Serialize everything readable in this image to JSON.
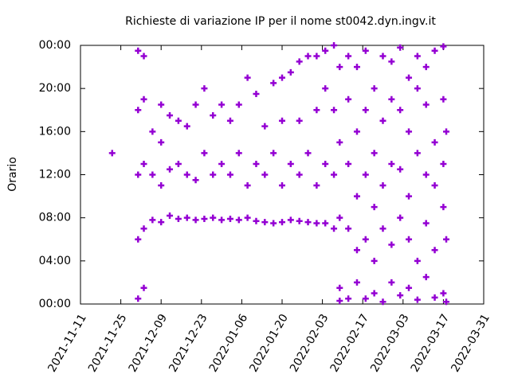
{
  "chart_data": {
    "type": "scatter",
    "title": "Richieste di variazione IP per il nome st0042.dyn.ingv.it",
    "y_label": "Orario",
    "xlim": [
      "2021-11-11",
      "2022-03-31"
    ],
    "xticks": [
      "2021-11-11",
      "2021-11-25",
      "2021-12-09",
      "2021-12-23",
      "2022-01-06",
      "2022-01-20",
      "2022-02-03",
      "2022-02-17",
      "2022-03-03",
      "2022-03-17",
      "2022-03-31"
    ],
    "ylim": [
      0,
      24
    ],
    "yticks": [
      {
        "value": 0,
        "label": "00:00"
      },
      {
        "value": 4,
        "label": "04:00"
      },
      {
        "value": 8,
        "label": "08:00"
      },
      {
        "value": 12,
        "label": "12:00"
      },
      {
        "value": 16,
        "label": "16:00"
      },
      {
        "value": 20,
        "label": "20:00"
      },
      {
        "value": 24,
        "label": "00:00"
      }
    ],
    "series": [
      {
        "color": "#9400d3",
        "x": [
          "2021-11-22",
          "2021-12-01",
          "2021-12-01",
          "2021-12-01",
          "2021-12-01",
          "2021-12-01",
          "2021-12-03",
          "2021-12-03",
          "2021-12-03",
          "2021-12-03",
          "2021-12-03",
          "2021-12-06",
          "2021-12-06",
          "2021-12-06",
          "2021-12-09",
          "2021-12-09",
          "2021-12-09",
          "2021-12-09",
          "2021-12-12",
          "2021-12-12",
          "2021-12-12",
          "2021-12-15",
          "2021-12-15",
          "2021-12-15",
          "2021-12-18",
          "2021-12-18",
          "2021-12-18",
          "2021-12-21",
          "2021-12-21",
          "2021-12-21",
          "2021-12-24",
          "2021-12-24",
          "2021-12-24",
          "2021-12-27",
          "2021-12-27",
          "2021-12-27",
          "2021-12-30",
          "2021-12-30",
          "2021-12-30",
          "2022-01-02",
          "2022-01-02",
          "2022-01-02",
          "2022-01-05",
          "2022-01-05",
          "2022-01-05",
          "2022-01-08",
          "2022-01-08",
          "2022-01-08",
          "2022-01-11",
          "2022-01-11",
          "2022-01-11",
          "2022-01-14",
          "2022-01-14",
          "2022-01-14",
          "2022-01-17",
          "2022-01-17",
          "2022-01-17",
          "2022-01-20",
          "2022-01-20",
          "2022-01-20",
          "2022-01-20",
          "2022-01-23",
          "2022-01-23",
          "2022-01-23",
          "2022-01-26",
          "2022-01-26",
          "2022-01-26",
          "2022-01-26",
          "2022-01-29",
          "2022-01-29",
          "2022-01-29",
          "2022-02-01",
          "2022-02-01",
          "2022-02-01",
          "2022-02-01",
          "2022-02-04",
          "2022-02-04",
          "2022-02-04",
          "2022-02-04",
          "2022-02-07",
          "2022-02-07",
          "2022-02-07",
          "2022-02-07",
          "2022-02-09",
          "2022-02-09",
          "2022-02-09",
          "2022-02-09",
          "2022-02-09",
          "2022-02-12",
          "2022-02-12",
          "2022-02-12",
          "2022-02-12",
          "2022-02-12",
          "2022-02-15",
          "2022-02-15",
          "2022-02-15",
          "2022-02-15",
          "2022-02-15",
          "2022-02-18",
          "2022-02-18",
          "2022-02-18",
          "2022-02-18",
          "2022-02-18",
          "2022-02-21",
          "2022-02-21",
          "2022-02-21",
          "2022-02-21",
          "2022-02-21",
          "2022-02-24",
          "2022-02-24",
          "2022-02-24",
          "2022-02-24",
          "2022-02-24",
          "2022-02-27",
          "2022-02-27",
          "2022-02-27",
          "2022-02-27",
          "2022-02-27",
          "2022-03-02",
          "2022-03-02",
          "2022-03-02",
          "2022-03-02",
          "2022-03-02",
          "2022-03-05",
          "2022-03-05",
          "2022-03-05",
          "2022-03-05",
          "2022-03-05",
          "2022-03-08",
          "2022-03-08",
          "2022-03-08",
          "2022-03-08",
          "2022-03-08",
          "2022-03-11",
          "2022-03-11",
          "2022-03-11",
          "2022-03-11",
          "2022-03-11",
          "2022-03-14",
          "2022-03-14",
          "2022-03-14",
          "2022-03-14",
          "2022-03-14",
          "2022-03-17",
          "2022-03-17",
          "2022-03-17",
          "2022-03-17",
          "2022-03-17",
          "2022-03-18",
          "2022-03-18",
          "2022-03-18"
        ],
        "y": [
          14,
          0.5,
          6,
          12,
          18,
          23.5,
          1.5,
          7,
          13,
          19,
          23,
          7.8,
          12,
          16,
          7.6,
          11,
          15,
          18.5,
          8.2,
          12.5,
          17.5,
          7.9,
          13,
          17,
          8,
          12,
          16.5,
          7.8,
          11.5,
          18.5,
          7.9,
          14,
          20,
          8,
          12,
          17.5,
          7.8,
          13,
          18.5,
          7.9,
          12,
          17,
          7.8,
          14,
          18.5,
          8,
          11,
          21,
          7.7,
          13,
          19.5,
          7.6,
          12,
          16.5,
          7.5,
          14,
          20.5,
          7.6,
          11,
          17,
          21,
          7.8,
          13,
          21.5,
          7.7,
          12,
          17,
          22.5,
          7.6,
          14,
          23,
          7.5,
          11,
          18,
          23,
          7.5,
          13,
          20,
          23.5,
          7,
          12,
          18,
          24,
          0.3,
          1.5,
          8,
          15,
          22,
          0.5,
          7,
          13,
          19,
          23,
          2,
          5,
          10,
          16,
          22,
          0.5,
          6,
          12,
          18,
          23.5,
          1,
          4,
          9,
          14,
          20,
          0.2,
          7,
          11,
          17,
          23,
          2,
          5.5,
          13,
          19,
          22.5,
          0.8,
          8,
          12.5,
          18,
          23.8,
          1.5,
          6,
          10,
          16,
          21,
          0.4,
          4,
          14,
          20,
          23,
          2.5,
          7.5,
          12,
          18.5,
          22,
          0.6,
          5,
          11,
          15,
          23.5,
          1,
          9,
          13,
          19,
          23.9,
          0.2,
          6,
          16
        ]
      }
    ]
  }
}
